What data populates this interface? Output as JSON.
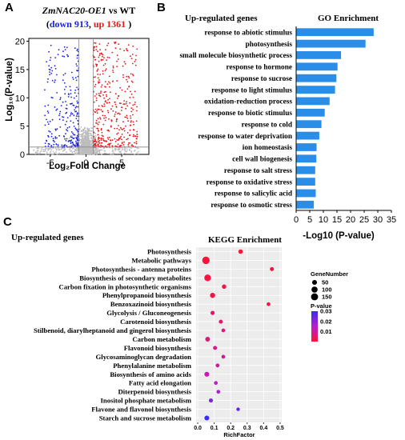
{
  "chart_data": [
    {
      "panel": "A",
      "type": "scatter",
      "title_parts": [
        "ZmNAC20-OE1",
        " vs WT"
      ],
      "subtitle_down": "down 913",
      "subtitle_up": "up 1361",
      "xlabel": "Log₂Fold Change",
      "ylabel": "Log₁₀(P-value)",
      "xlim": [
        -8,
        8.8
      ],
      "ylim": [
        0,
        20.5
      ],
      "xticks": [
        -5,
        0,
        5
      ],
      "yticks": [
        0,
        5,
        10,
        15,
        20
      ],
      "threshold_y": 1.3,
      "threshold_x": [
        -1,
        1
      ],
      "series": [
        {
          "name": "down",
          "count": 913,
          "color": "#1a22e6"
        },
        {
          "name": "up",
          "count": 1361,
          "color": "#e61a1a"
        },
        {
          "name": "ns",
          "color": "#bdbdbd"
        }
      ]
    },
    {
      "panel": "B",
      "type": "bar",
      "orientation": "horizontal",
      "header_left": "Up-regulated genes",
      "title": "GO Enrichment",
      "xlabel": "-Log10 (P-value)",
      "xlim": [
        0,
        35
      ],
      "xticks": [
        0,
        5,
        10,
        15,
        20,
        25,
        30,
        35
      ],
      "color": "#2a8ee8",
      "categories": [
        "response to abiotic stimulus",
        "photosynthesis",
        "small molecule biosynthetic process",
        "response to hormone",
        "response to sucrose",
        "response to light stimulus",
        "oxidation-reduction process",
        "response to biotic stimulus",
        "response to cold",
        "response to water deprivation",
        "ion homeostasis",
        "cell wall biogenesis",
        "response to salt stress",
        "response to oxidative stress",
        "response to salicylic acid",
        "response to osmotic stress"
      ],
      "values": [
        28.5,
        25.5,
        16.5,
        15.2,
        14.8,
        14.3,
        12.3,
        10.5,
        9.3,
        8.5,
        7.5,
        7.4,
        7.0,
        7.0,
        7.2,
        6.5
      ]
    },
    {
      "panel": "C",
      "type": "scatter",
      "header_left": "Up-regulated genes",
      "title": "KEGG Enrichment",
      "xlabel": "RichFactor",
      "xlim": [
        -0.01,
        0.51
      ],
      "xticks": [
        "0.0",
        "0.1",
        "0.2",
        "0.3",
        "0.4",
        "0.5"
      ],
      "legend_size_title": "GeneNumber",
      "legend_sizes": [
        50,
        100,
        150
      ],
      "legend_color_title": "P-value",
      "legend_color_ticks": [
        "0.03",
        "0.02",
        "0.01"
      ],
      "color_range": [
        0,
        0.03
      ],
      "categories": [
        "Photosynthesis",
        "Metabolic pathways",
        "Photosynthesis - antenna proteins",
        "Biosynthesis of secondary metabolites",
        "Carbon fixation in photosynthetic organisms",
        "Phenylpropanoid biosynthesis",
        "Benzoxazinoid biosynthesis",
        "Glycolysis / Gluconeogenesis",
        "Carotenoid biosynthesis",
        "Stilbenoid, diarylheptanoid and gingerol biosynthesis",
        "Carbon metabolism",
        "Flavonoid biosynthesis",
        "Glycosaminoglycan degradation",
        "Phenylalanine metabolism",
        "Biosynthesis of amino acids",
        "Fatty acid elongation",
        "Diterpenoid biosynthesis",
        "Inositol phosphate metabolism",
        "Flavone and flavonol biosynthesis",
        "Starch and sucrose metabolism"
      ],
      "points": [
        {
          "rich": 0.26,
          "genes": 35,
          "p": 0.001
        },
        {
          "rich": 0.05,
          "genes": 175,
          "p": 0.001
        },
        {
          "rich": 0.45,
          "genes": 25,
          "p": 0.001
        },
        {
          "rich": 0.06,
          "genes": 130,
          "p": 0.002
        },
        {
          "rich": 0.16,
          "genes": 35,
          "p": 0.002
        },
        {
          "rich": 0.09,
          "genes": 60,
          "p": 0.002
        },
        {
          "rich": 0.43,
          "genes": 20,
          "p": 0.003
        },
        {
          "rich": 0.09,
          "genes": 30,
          "p": 0.006
        },
        {
          "rich": 0.14,
          "genes": 25,
          "p": 0.006
        },
        {
          "rich": 0.155,
          "genes": 20,
          "p": 0.007
        },
        {
          "rich": 0.06,
          "genes": 45,
          "p": 0.007
        },
        {
          "rich": 0.105,
          "genes": 25,
          "p": 0.008
        },
        {
          "rich": 0.155,
          "genes": 20,
          "p": 0.009
        },
        {
          "rich": 0.12,
          "genes": 22,
          "p": 0.011
        },
        {
          "rich": 0.055,
          "genes": 50,
          "p": 0.012
        },
        {
          "rich": 0.11,
          "genes": 20,
          "p": 0.014
        },
        {
          "rich": 0.125,
          "genes": 20,
          "p": 0.016
        },
        {
          "rich": 0.08,
          "genes": 28,
          "p": 0.022
        },
        {
          "rich": 0.245,
          "genes": 15,
          "p": 0.025
        },
        {
          "rich": 0.055,
          "genes": 50,
          "p": 0.03
        }
      ]
    }
  ]
}
